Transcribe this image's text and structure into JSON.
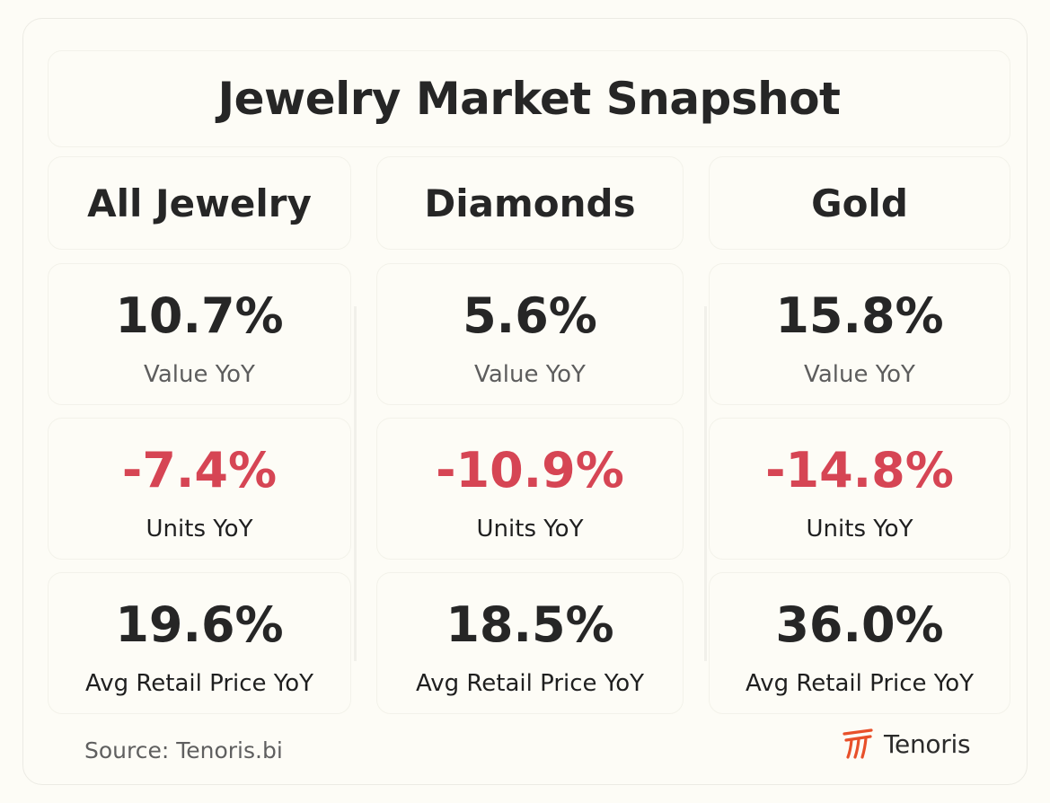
{
  "chart_data": {
    "type": "table",
    "title": "Jewelry Market Snapshot",
    "columns": [
      "All Jewelry",
      "Diamonds",
      "Gold"
    ],
    "metrics": [
      {
        "label": "Value YoY",
        "values": [
          "10.7%",
          "5.6%",
          "15.8%"
        ],
        "numeric": [
          10.7,
          5.6,
          15.8
        ]
      },
      {
        "label": "Units YoY",
        "values": [
          "-7.4%",
          "-10.9%",
          "-14.8%"
        ],
        "numeric": [
          -7.4,
          -10.9,
          -14.8
        ]
      },
      {
        "label": "Avg Retail Price YoY",
        "values": [
          "19.6%",
          "18.5%",
          "36.0%"
        ],
        "numeric": [
          19.6,
          18.5,
          36.0
        ]
      }
    ]
  },
  "footer": {
    "source": "Source: Tenoris.bi",
    "brand": "Tenoris",
    "logo_icon": "tenoris-logo-icon"
  },
  "colors": {
    "negative": "#d64554",
    "text": "#262626",
    "muted": "#5d5d5d",
    "brand": "#e8502a"
  }
}
